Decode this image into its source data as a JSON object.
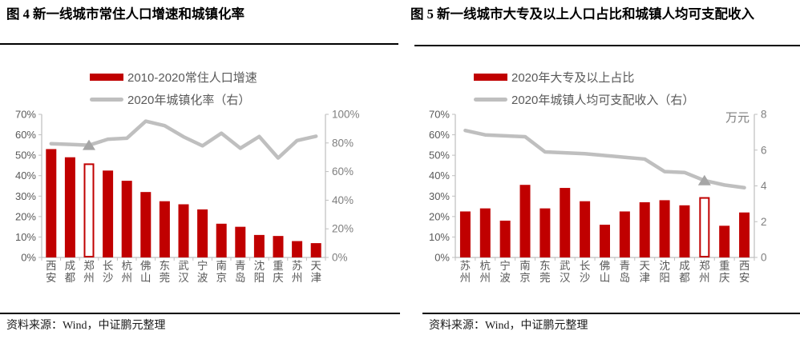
{
  "colors": {
    "bar": "#C00000",
    "line": "#BFBFBF",
    "marker": "#A6A6A6",
    "axis": "#BFBFBF",
    "axis_text": "#595959",
    "right_axis_text": "#7F7F7F",
    "category_text": "#595959"
  },
  "source_note": "资料来源：Wind，中证鹏元整理",
  "charts": [
    {
      "title": "图 4  新一线城市常住人口增速和城镇化率",
      "legend": [
        {
          "label": "2010-2020常住人口增速",
          "type": "bar",
          "color": "#C00000"
        },
        {
          "label": "2020年城镇化率（右）",
          "type": "line",
          "color": "#BFBFBF"
        }
      ],
      "chart_data": {
        "type": "bar+line",
        "legend_position": "top",
        "grid": false,
        "categories": [
          "西安",
          "成都",
          "郑州",
          "长沙",
          "杭州",
          "佛山",
          "东莞",
          "武汉",
          "宁波",
          "南京",
          "青岛",
          "沈阳",
          "重庆",
          "苏州",
          "天津"
        ],
        "left_axis": {
          "min": 0,
          "max": 70,
          "step": 10,
          "suffix": "%"
        },
        "right_axis": {
          "min": 0,
          "max": 100,
          "step": 20,
          "suffix": "%",
          "unit_label": ""
        },
        "series": [
          {
            "name": "2010-2020常住人口增速",
            "type": "bar",
            "axis": "left",
            "unit": "%",
            "highlight_index": 2,
            "values": [
              53,
              49,
              46,
              42.5,
              37.5,
              32,
              27.5,
              26,
              23.5,
              16.5,
              15,
              11,
              10.5,
              8,
              7
            ]
          },
          {
            "name": "2020年城镇化率（右）",
            "type": "line",
            "axis": "right",
            "unit": "%",
            "marker_index": 2,
            "values": [
              79.5,
              79,
              78.4,
              82.6,
              83.3,
              95.2,
              92.1,
              84.3,
              78,
              86.8,
              76.3,
              84.5,
              69.5,
              81.7,
              84.7
            ]
          }
        ]
      }
    },
    {
      "title": "图 5  新一线城市大专及以上人口占比和城镇人均可支配收入",
      "legend": [
        {
          "label": "2020年大专及以上占比",
          "type": "bar",
          "color": "#C00000"
        },
        {
          "label": "2020年城镇人均可支配收入（右）",
          "type": "line",
          "color": "#BFBFBF"
        }
      ],
      "chart_data": {
        "type": "bar+line",
        "legend_position": "top",
        "grid": false,
        "categories": [
          "苏州",
          "杭州",
          "宁波",
          "南京",
          "东莞",
          "武汉",
          "长沙",
          "佛山",
          "青岛",
          "天津",
          "沈阳",
          "成都",
          "郑州",
          "重庆",
          "西安"
        ],
        "left_axis": {
          "min": 0,
          "max": 70,
          "step": 10,
          "suffix": "%"
        },
        "right_axis": {
          "min": 0,
          "max": 8,
          "step": 2,
          "suffix": "",
          "unit_label": "万元"
        },
        "series": [
          {
            "name": "2020年大专及以上占比",
            "type": "bar",
            "axis": "left",
            "unit": "%",
            "highlight_index": 12,
            "values": [
              22.5,
              24,
              18,
              35.5,
              24,
              34,
              27.5,
              16,
              22.5,
              27,
              28,
              25.5,
              29.5,
              15.5,
              22
            ]
          },
          {
            "name": "2020年城镇人均可支配收入（右）",
            "type": "line",
            "axis": "right",
            "unit": "万元",
            "marker_index": 12,
            "values": [
              7.1,
              6.85,
              6.8,
              6.75,
              5.9,
              5.85,
              5.8,
              5.7,
              5.6,
              5.5,
              4.8,
              4.75,
              4.3,
              4.05,
              3.9
            ]
          }
        ]
      }
    }
  ]
}
